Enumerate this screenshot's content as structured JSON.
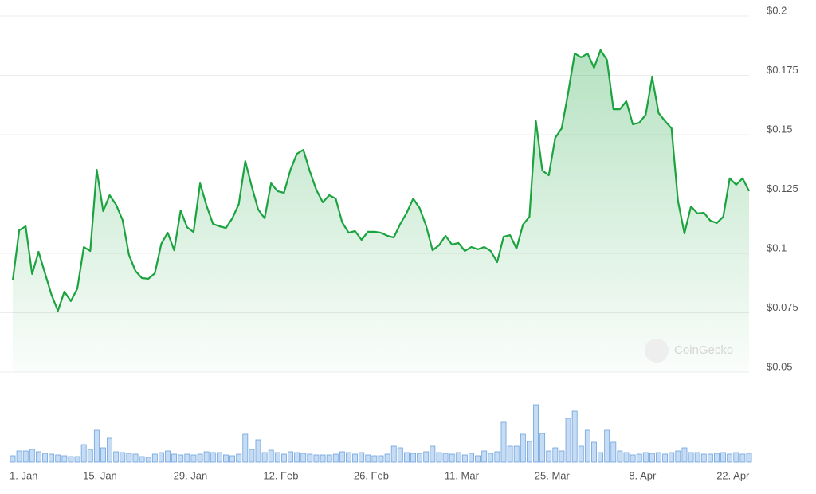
{
  "chart_data": [
    {
      "type": "line",
      "categories": [
        "1. Jan",
        null,
        null,
        null,
        null,
        null,
        null,
        null,
        null,
        null,
        null,
        null,
        null,
        null,
        "15. Jan",
        null,
        null,
        null,
        null,
        null,
        null,
        null,
        null,
        null,
        null,
        null,
        null,
        null,
        "29. Jan",
        null,
        null,
        null,
        null,
        null,
        null,
        null,
        null,
        null,
        null,
        null,
        null,
        null,
        "12. Feb",
        null,
        null,
        null,
        null,
        null,
        null,
        null,
        null,
        null,
        null,
        null,
        null,
        null,
        "26. Feb",
        null,
        null,
        null,
        null,
        null,
        null,
        null,
        null,
        null,
        null,
        null,
        null,
        null,
        "11. Mar",
        null,
        null,
        null,
        null,
        null,
        null,
        null,
        null,
        null,
        null,
        null,
        null,
        null,
        "25. Mar",
        null,
        null,
        null,
        null,
        null,
        null,
        null,
        null,
        null,
        null,
        null,
        null,
        null,
        "8. Apr",
        null,
        null,
        null,
        null,
        null,
        null,
        null,
        null,
        null,
        null,
        null,
        null,
        null,
        "22. Apr",
        null,
        null
      ],
      "values": [
        0.0886,
        0.1097,
        0.1114,
        0.0913,
        0.1007,
        0.0916,
        0.0826,
        0.0758,
        0.0839,
        0.0799,
        0.0852,
        0.1027,
        0.101,
        0.1352,
        0.1178,
        0.1245,
        0.1205,
        0.1141,
        0.0993,
        0.0926,
        0.0896,
        0.0893,
        0.0916,
        0.104,
        0.1087,
        0.1013,
        0.1181,
        0.111,
        0.109,
        0.1295,
        0.1201,
        0.1124,
        0.1114,
        0.1107,
        0.1148,
        0.1208,
        0.1389,
        0.1282,
        0.1185,
        0.1148,
        0.1295,
        0.1262,
        0.1255,
        0.1352,
        0.1419,
        0.1436,
        0.1346,
        0.1268,
        0.1215,
        0.1245,
        0.1231,
        0.1131,
        0.1087,
        0.1094,
        0.1057,
        0.1091,
        0.1091,
        0.1087,
        0.1074,
        0.1067,
        0.1124,
        0.1171,
        0.1231,
        0.1191,
        0.1117,
        0.1013,
        0.1034,
        0.1074,
        0.1037,
        0.1044,
        0.101,
        0.1027,
        0.1017,
        0.1027,
        0.101,
        0.0963,
        0.107,
        0.1077,
        0.102,
        0.1121,
        0.1154,
        0.1557,
        0.1349,
        0.1329,
        0.1487,
        0.1527,
        0.1678,
        0.1842,
        0.1826,
        0.1842,
        0.1782,
        0.1856,
        0.1815,
        0.1607,
        0.1607,
        0.1641,
        0.1544,
        0.155,
        0.1584,
        0.1742,
        0.1591,
        0.1557,
        0.1527,
        0.1221,
        0.1084,
        0.1198,
        0.1168,
        0.1171,
        0.1138,
        0.1128,
        0.1154,
        0.1316,
        0.1289,
        0.1316,
        0.1262
      ],
      "color": "#1ba33f",
      "ylim": [
        0.05,
        0.2
      ],
      "yticks": [
        {
          "value": 0.05,
          "label": "$0.05"
        },
        {
          "value": 0.075,
          "label": "$0.075"
        },
        {
          "value": 0.1,
          "label": "$0.1"
        },
        {
          "value": 0.125,
          "label": "$0.125"
        },
        {
          "value": 0.15,
          "label": "$0.15"
        },
        {
          "value": 0.175,
          "label": "$0.175"
        },
        {
          "value": 0.2,
          "label": "$0.2"
        }
      ],
      "grid": true,
      "watermark": "CoinGecko"
    },
    {
      "type": "bar",
      "values": [
        8,
        14,
        14,
        16,
        13,
        11,
        10,
        9,
        8,
        7,
        7,
        22,
        16,
        40,
        18,
        30,
        13,
        12,
        11,
        10,
        7,
        6,
        10,
        12,
        14,
        10,
        9,
        10,
        9,
        10,
        13,
        12,
        12,
        9,
        8,
        10,
        35,
        16,
        28,
        12,
        15,
        12,
        10,
        13,
        12,
        11,
        10,
        9,
        9,
        9,
        10,
        13,
        12,
        10,
        12,
        9,
        8,
        8,
        10,
        20,
        18,
        12,
        11,
        11,
        13,
        20,
        12,
        11,
        10,
        12,
        9,
        11,
        8,
        14,
        11,
        13,
        50,
        20,
        20,
        35,
        26,
        72,
        36,
        14,
        18,
        14,
        55,
        64,
        20,
        40,
        25,
        12,
        40,
        25,
        14,
        12,
        9,
        10,
        12,
        11,
        12,
        10,
        12,
        14,
        18,
        12,
        12,
        10,
        10,
        11,
        12,
        10,
        12,
        10,
        11
      ],
      "color": "#c6dcf5"
    }
  ]
}
